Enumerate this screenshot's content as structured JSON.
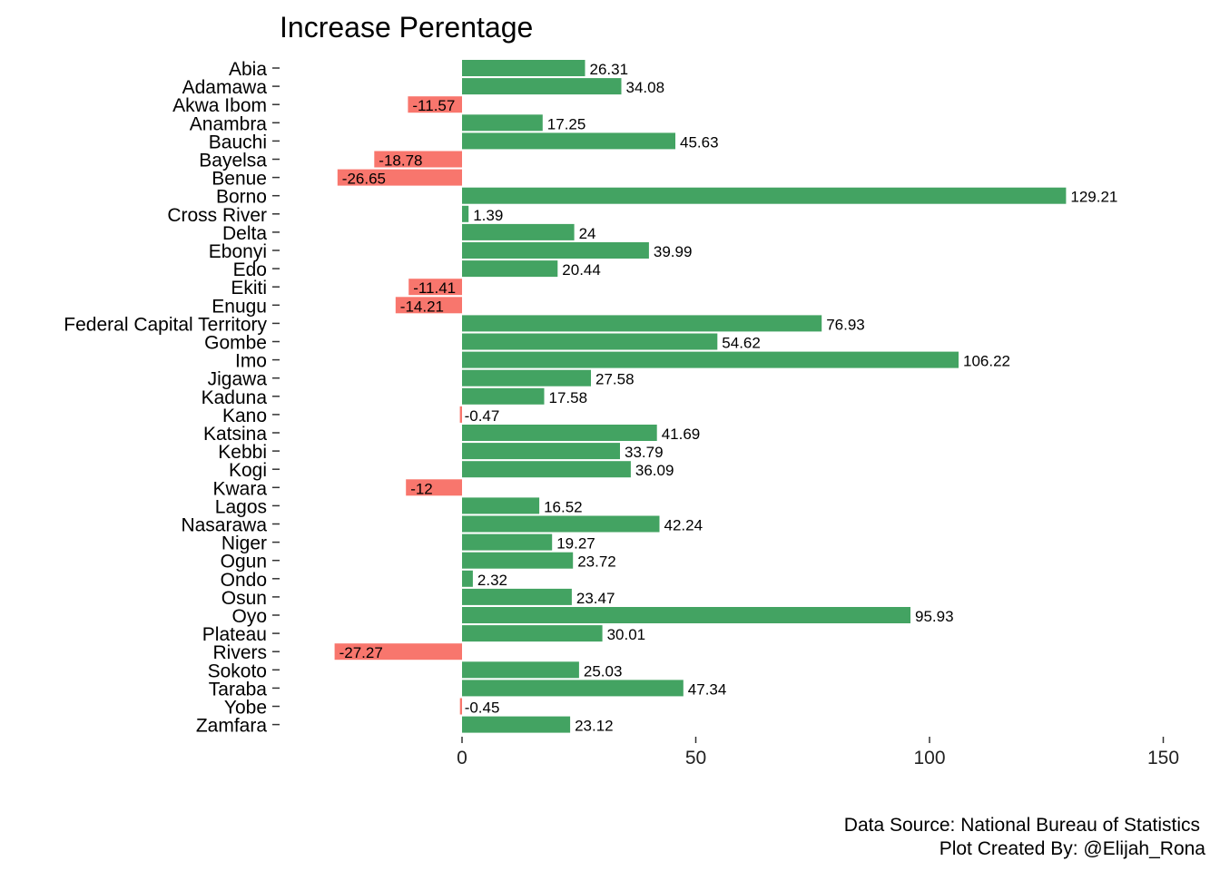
{
  "chart_data": {
    "type": "bar",
    "orientation": "horizontal",
    "title": "Increase Perentage",
    "xlabel": "",
    "ylabel": "",
    "xlim": [
      -40,
      150
    ],
    "xticks": [
      0,
      50,
      100,
      150
    ],
    "grid": false,
    "legend": "none",
    "positive_color": "#43a362",
    "negative_color": "#f8766d",
    "categories": [
      "Abia",
      "Adamawa",
      "Akwa Ibom",
      "Anambra",
      "Bauchi",
      "Bayelsa",
      "Benue",
      "Borno",
      "Cross River",
      "Delta",
      "Ebonyi",
      "Edo",
      "Ekiti",
      "Enugu",
      "Federal Capital Territory",
      "Gombe",
      "Imo",
      "Jigawa",
      "Kaduna",
      "Kano",
      "Katsina",
      "Kebbi",
      "Kogi",
      "Kwara",
      "Lagos",
      "Nasarawa",
      "Niger",
      "Ogun",
      "Ondo",
      "Osun",
      "Oyo",
      "Plateau",
      "Rivers",
      "Sokoto",
      "Taraba",
      "Yobe",
      "Zamfara"
    ],
    "values": [
      26.31,
      34.08,
      -11.57,
      17.25,
      45.63,
      -18.78,
      -26.65,
      129.21,
      1.39,
      24,
      39.99,
      20.44,
      -11.41,
      -14.21,
      76.93,
      54.62,
      106.22,
      27.58,
      17.58,
      -0.47,
      41.69,
      33.79,
      36.09,
      -12,
      16.52,
      42.24,
      19.27,
      23.72,
      2.32,
      23.47,
      95.93,
      30.01,
      -27.27,
      25.03,
      47.34,
      -0.45,
      23.12
    ],
    "captions": [
      "Data Source: National Bureau of Statistics",
      "Plot Created By: @Elijah_Rona"
    ]
  }
}
